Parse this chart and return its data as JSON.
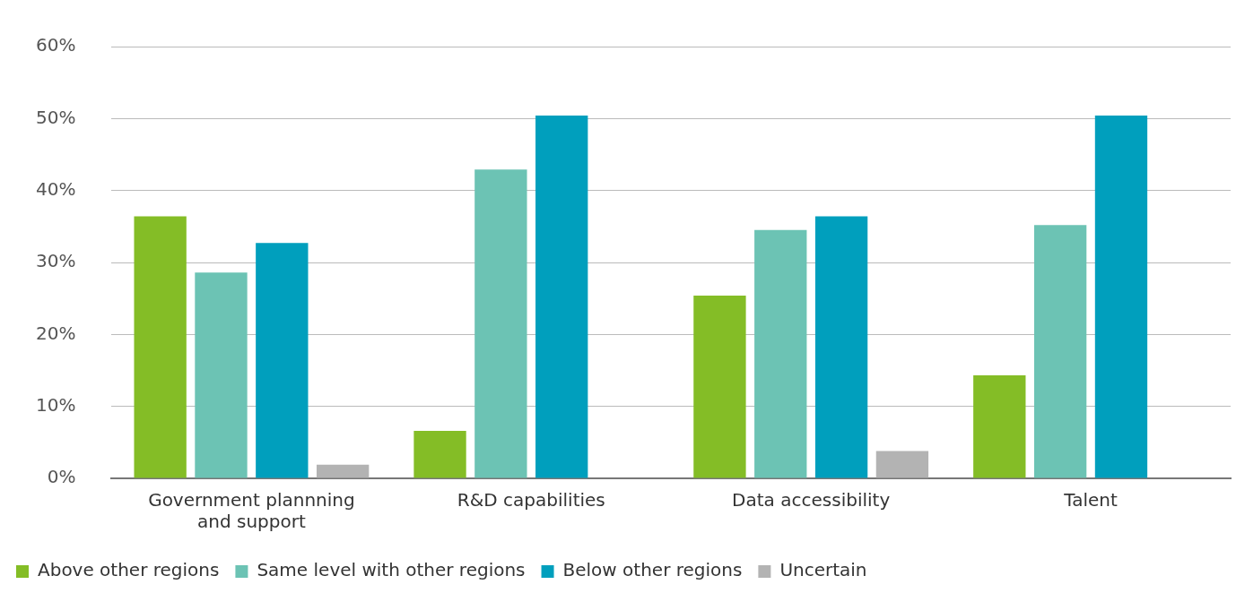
{
  "chart_data": {
    "type": "bar",
    "categories": [
      "Government plannning and support",
      "R&D capabilities",
      "Data accessibility",
      "Talent"
    ],
    "series": [
      {
        "name": "Above other regions",
        "color": "#84bd26",
        "values": [
          36.4,
          6.6,
          25.4,
          14.3
        ]
      },
      {
        "name": "Same level with other regions",
        "color": "#6cc3b4",
        "values": [
          28.6,
          42.9,
          34.5,
          35.2
        ]
      },
      {
        "name": "Below other regions",
        "color": "#009fbd",
        "values": [
          32.7,
          50.4,
          36.4,
          50.4
        ]
      },
      {
        "name": "Uncertain",
        "color": "#b3b3b3",
        "values": [
          1.9,
          null,
          3.8,
          null
        ]
      }
    ],
    "ylim": [
      0,
      60
    ],
    "yticks": [
      {
        "value": 0,
        "label": "0%"
      },
      {
        "value": 10,
        "label": "10%"
      },
      {
        "value": 20,
        "label": "20%"
      },
      {
        "value": 30,
        "label": "30%"
      },
      {
        "value": 40,
        "label": "40%"
      },
      {
        "value": 50,
        "label": "50%"
      },
      {
        "value": 60,
        "label": "60%"
      }
    ],
    "grid": "y",
    "legend": "bottom"
  }
}
